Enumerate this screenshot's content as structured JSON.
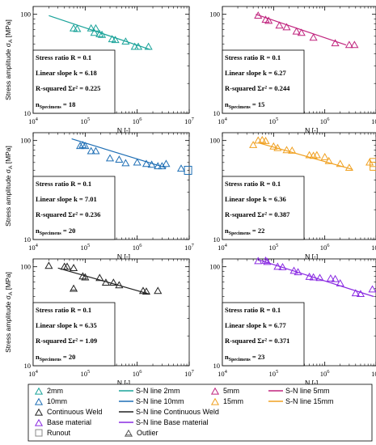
{
  "chart_data": [
    {
      "type": "scatter",
      "series_label": "2mm",
      "color": "#1aa39a",
      "x_scale": "log",
      "y_scale": "log",
      "xlim": [
        10000,
        10000000
      ],
      "ylim": [
        10,
        120
      ],
      "xticks": [
        10000,
        100000,
        1000000,
        10000000
      ],
      "xtick_labels": [
        "10^4",
        "10^5",
        "10^6",
        "10^7"
      ],
      "yticks": [
        10,
        100
      ],
      "ytick_labels": [
        "10",
        "100"
      ],
      "xlabel": "N [-]",
      "ylabel": "Stress amplitude σA [MPa]",
      "points": [
        [
          60000,
          72
        ],
        [
          70000,
          71
        ],
        [
          130000,
          72
        ],
        [
          150000,
          65
        ],
        [
          160000,
          72
        ],
        [
          190000,
          63
        ],
        [
          210000,
          62
        ],
        [
          330000,
          56
        ],
        [
          380000,
          55
        ],
        [
          600000,
          53
        ],
        [
          900000,
          47
        ],
        [
          1050000,
          47
        ],
        [
          1650000,
          47
        ]
      ],
      "fit_line": [
        [
          20000,
          97
        ],
        [
          1800000,
          44
        ]
      ],
      "stats": {
        "ratio": "Stress ratio R = 0.1",
        "slope": "Linear slope k = 6.18",
        "r2": "R-squared Σr² = 0.225",
        "n_label": "n",
        "n_sub": "Specimens",
        "n_value": "= 18"
      }
    },
    {
      "type": "scatter",
      "series_label": "5mm",
      "color": "#c0247e",
      "x_scale": "log",
      "y_scale": "log",
      "xlim": [
        10000,
        10000000
      ],
      "ylim": [
        10,
        120
      ],
      "xticks": [
        10000,
        100000,
        1000000,
        10000000
      ],
      "xtick_labels": [
        "10^4",
        "10^5",
        "10^6",
        "10^7"
      ],
      "yticks": [
        10,
        100
      ],
      "ytick_labels": [
        "10",
        "100"
      ],
      "xlabel": "N [-]",
      "ylabel": "",
      "points": [
        [
          50000,
          97
        ],
        [
          70000,
          88
        ],
        [
          80000,
          86
        ],
        [
          130000,
          77
        ],
        [
          180000,
          74
        ],
        [
          280000,
          67
        ],
        [
          350000,
          65
        ],
        [
          600000,
          58
        ],
        [
          1600000,
          51
        ],
        [
          3000000,
          49
        ],
        [
          3800000,
          49
        ]
      ],
      "fit_line": [
        [
          45000,
          100
        ],
        [
          2600000,
          49
        ]
      ],
      "stats": {
        "ratio": "Stress ratio R = 0.1",
        "slope": "Linear slope k = 6.27",
        "r2": "R-squared Σr² = 0.244",
        "n_label": "n",
        "n_sub": "Specimens",
        "n_value": "= 15"
      }
    },
    {
      "type": "scatter",
      "series_label": "10mm",
      "color": "#1f6fb5",
      "x_scale": "log",
      "y_scale": "log",
      "xlim": [
        10000,
        10000000
      ],
      "ylim": [
        10,
        120
      ],
      "xticks": [
        10000,
        100000,
        1000000,
        10000000
      ],
      "xtick_labels": [
        "10^4",
        "10^5",
        "10^6",
        "10^7"
      ],
      "yticks": [
        10,
        100
      ],
      "ytick_labels": [
        "10",
        "100"
      ],
      "xlabel": "N [-]",
      "ylabel": "Stress amplitude σA [MPa]",
      "points": [
        [
          80000,
          88
        ],
        [
          90000,
          90
        ],
        [
          100000,
          88
        ],
        [
          130000,
          78
        ],
        [
          160000,
          78
        ],
        [
          300000,
          66
        ],
        [
          450000,
          64
        ],
        [
          600000,
          59
        ],
        [
          1000000,
          60
        ],
        [
          1500000,
          58
        ],
        [
          1900000,
          57
        ],
        [
          2500000,
          55
        ],
        [
          3000000,
          55
        ],
        [
          3600000,
          58
        ],
        [
          7000000,
          52
        ]
      ],
      "runout": [
        [
          9500000,
          50
        ]
      ],
      "fit_line": [
        [
          55000,
          104
        ],
        [
          3600000,
          53
        ]
      ],
      "stats": {
        "ratio": "Stress ratio R = 0.1",
        "slope": "Linear slope k = 7.01",
        "r2": "R-squared Σr² = 0.236",
        "n_label": "n",
        "n_sub": "Specimens",
        "n_value": "= 20"
      }
    },
    {
      "type": "scatter",
      "series_label": "15mm",
      "color": "#f0a020",
      "x_scale": "log",
      "y_scale": "log",
      "xlim": [
        10000,
        10000000
      ],
      "ylim": [
        10,
        120
      ],
      "xticks": [
        10000,
        100000,
        1000000,
        10000000
      ],
      "xtick_labels": [
        "10^4",
        "10^5",
        "10^6",
        "10^7"
      ],
      "yticks": [
        10,
        100
      ],
      "ytick_labels": [
        "10",
        "100"
      ],
      "xlabel": "N [-]",
      "ylabel": "",
      "points": [
        [
          40000,
          90
        ],
        [
          50000,
          100
        ],
        [
          60000,
          101
        ],
        [
          70000,
          99
        ],
        [
          100000,
          87
        ],
        [
          120000,
          84
        ],
        [
          180000,
          80
        ],
        [
          230000,
          79
        ],
        [
          500000,
          71
        ],
        [
          600000,
          70
        ],
        [
          700000,
          71
        ],
        [
          1000000,
          68
        ],
        [
          1200000,
          62
        ],
        [
          2000000,
          58
        ],
        [
          3000000,
          53
        ],
        [
          7500000,
          60
        ]
      ],
      "runout": [
        [
          9000000,
          60
        ],
        [
          9000000,
          55
        ]
      ],
      "fit_line": [
        [
          50000,
          95
        ],
        [
          3500000,
          51
        ]
      ],
      "stats": {
        "ratio": "Stress ratio R = 0.1",
        "slope": "Linear slope k = 6.36",
        "r2": "R-squared Σr² = 0.387",
        "n_label": "n",
        "n_sub": "Specimens",
        "n_value": "= 22"
      }
    },
    {
      "type": "scatter",
      "series_label": "Continuous Weld",
      "color": "#222222",
      "x_scale": "log",
      "y_scale": "log",
      "xlim": [
        10000,
        10000000
      ],
      "ylim": [
        10,
        120
      ],
      "xticks": [
        10000,
        100000,
        1000000,
        10000000
      ],
      "xtick_labels": [
        "10^4",
        "10^5",
        "10^6",
        "10^7"
      ],
      "yticks": [
        10,
        100
      ],
      "ytick_labels": [
        "10",
        "100"
      ],
      "xlabel": "N [-]",
      "ylabel": "Stress amplitude σA [MPa]",
      "points": [
        [
          20000,
          102
        ],
        [
          40000,
          100
        ],
        [
          45000,
          100
        ],
        [
          60000,
          97
        ],
        [
          90000,
          80
        ],
        [
          100000,
          78
        ],
        [
          190000,
          77
        ],
        [
          250000,
          69
        ],
        [
          350000,
          69
        ],
        [
          450000,
          65
        ],
        [
          1300000,
          57
        ],
        [
          1500000,
          56
        ],
        [
          2500000,
          57
        ]
      ],
      "outliers": [
        [
          60000,
          60
        ]
      ],
      "fit_line": [
        [
          30000,
          97
        ],
        [
          1700000,
          53
        ]
      ],
      "stats": {
        "ratio": "Stress ratio R = 0.1",
        "slope": "Linear slope k = 6.35",
        "r2": "R-squared Σr² = 1.09",
        "n_label": "n",
        "n_sub": "Specimens",
        "n_value": "= 20"
      }
    },
    {
      "type": "scatter",
      "series_label": "Base material",
      "color": "#8a2be2",
      "x_scale": "log",
      "y_scale": "log",
      "xlim": [
        10000,
        10000000
      ],
      "ylim": [
        10,
        120
      ],
      "xticks": [
        10000,
        100000,
        1000000,
        10000000
      ],
      "xtick_labels": [
        "10^4",
        "10^5",
        "10^6",
        "10^7"
      ],
      "yticks": [
        10,
        100
      ],
      "ytick_labels": [
        "10",
        "100"
      ],
      "xlabel": "N [-]",
      "ylabel": "",
      "points": [
        [
          50000,
          114
        ],
        [
          70000,
          115
        ],
        [
          75000,
          112
        ],
        [
          120000,
          100
        ],
        [
          150000,
          99
        ],
        [
          250000,
          91
        ],
        [
          300000,
          88
        ],
        [
          500000,
          79
        ],
        [
          600000,
          78
        ],
        [
          800000,
          77
        ],
        [
          1300000,
          76
        ],
        [
          1600000,
          75
        ],
        [
          2000000,
          68
        ],
        [
          4000000,
          54
        ],
        [
          5000000,
          53
        ],
        [
          8500000,
          59
        ]
      ],
      "fit_line": [
        [
          50000,
          118
        ],
        [
          9000000,
          50
        ]
      ],
      "stats": {
        "ratio": "Stress ratio R = 0.1",
        "slope": "Linear slope k = 6.77",
        "r2": "R-squared Σr² = 0.371",
        "n_label": "n",
        "n_sub": "Specimens",
        "n_value": "= 23"
      }
    }
  ],
  "legend": [
    {
      "label": "2mm",
      "kind": "marker",
      "color": "#1aa39a"
    },
    {
      "label": "S-N line 2mm",
      "kind": "line",
      "color": "#1aa39a"
    },
    {
      "label": "5mm",
      "kind": "marker",
      "color": "#c0247e"
    },
    {
      "label": "S-N line 5mm",
      "kind": "line",
      "color": "#c0247e"
    },
    {
      "label": "10mm",
      "kind": "marker",
      "color": "#1f6fb5"
    },
    {
      "label": "S-N line 10mm",
      "kind": "line",
      "color": "#1f6fb5"
    },
    {
      "label": "15mm",
      "kind": "marker",
      "color": "#f0a020"
    },
    {
      "label": "S-N line 15mm",
      "kind": "line",
      "color": "#f0a020"
    },
    {
      "label": "Continuous Weld",
      "kind": "marker",
      "color": "#222222"
    },
    {
      "label": "S-N line Continuous Weld",
      "kind": "line",
      "color": "#222222"
    },
    {
      "label": "Base material",
      "kind": "marker",
      "color": "#8a2be2"
    },
    {
      "label": "S-N line Base material",
      "kind": "line",
      "color": "#8a2be2"
    },
    {
      "label": "Runout",
      "kind": "square",
      "color": "#888888"
    },
    {
      "label": "Outlier",
      "kind": "outlier",
      "color": "#555555"
    }
  ]
}
